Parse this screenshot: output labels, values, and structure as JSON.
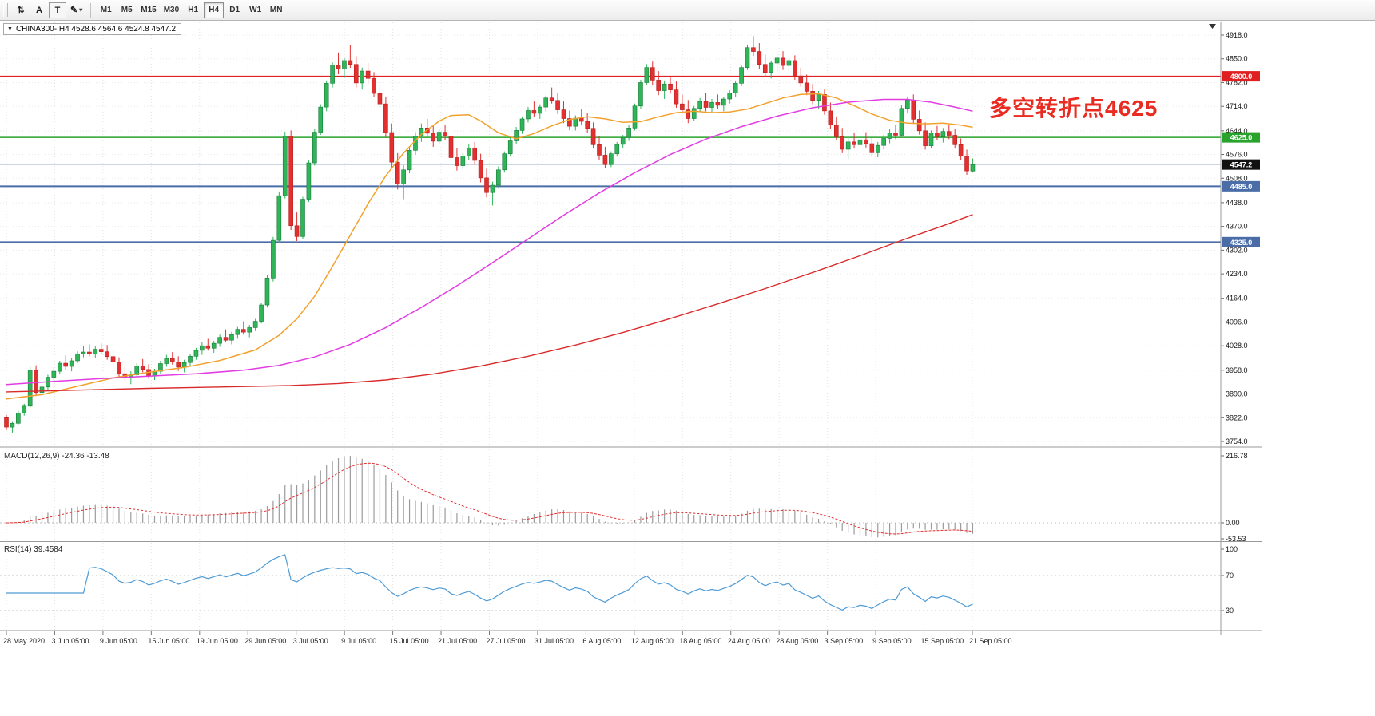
{
  "toolbar": {
    "tools": [
      {
        "name": "chart-shift",
        "label": "⇅"
      },
      {
        "name": "text-annotation",
        "label": "A"
      },
      {
        "name": "text-label",
        "label": "T"
      },
      {
        "name": "draw-tool",
        "label": "✎"
      }
    ],
    "timeframes": [
      "M1",
      "M5",
      "M15",
      "M30",
      "H1",
      "H4",
      "D1",
      "W1",
      "MN"
    ],
    "active_timeframe": "H4"
  },
  "chart": {
    "title": "CHINA300-,H4 4528.6 4564.6 4524.8 4547.2",
    "symbol": "CHINA300-",
    "period": "H4",
    "ohlc": {
      "open": 4528.6,
      "high": 4564.6,
      "low": 4524.8,
      "close": 4547.2
    },
    "annotation": {
      "text": "多空转折点4625",
      "color": "#ea2b22"
    },
    "colors": {
      "up": "#2fb558",
      "up_stroke": "#157a38",
      "down": "#e22f2f",
      "down_stroke": "#b81d1d",
      "ma_fast": "#f2a12c",
      "ma_mid": "#e23ce2",
      "ma_slow": "#d92b2b",
      "grid": "#e2e2e2",
      "current_line": "#a9bed2"
    },
    "price_axis": [
      "4918.0",
      "4850.0",
      "4782.0",
      "4714.0",
      "4644.0",
      "4576.0",
      "4508.0",
      "4438.0",
      "4370.0",
      "4302.0",
      "4234.0",
      "4164.0",
      "4096.0",
      "4028.0",
      "3958.0",
      "3890.0",
      "3822.0",
      "3754.0"
    ],
    "hlines": [
      {
        "value": 4800.0,
        "label": "4800.0",
        "color": "#e02020",
        "width": 1.4
      },
      {
        "value": 4625.0,
        "label": "4625.0",
        "color": "#28a32b",
        "width": 1.6
      },
      {
        "value": 4485.0,
        "label": "4485.0",
        "color": "#4a6da8",
        "width": 2
      },
      {
        "value": 4325.0,
        "label": "4325.0",
        "color": "#4a6da8",
        "width": 2
      }
    ],
    "current_price": {
      "value": 4547.2,
      "label": "4547.2",
      "badge_color": "#111111"
    },
    "candles": [
      [
        3822,
        3830,
        3786,
        3795
      ],
      [
        3795,
        3810,
        3778,
        3806
      ],
      [
        3806,
        3842,
        3800,
        3835
      ],
      [
        3835,
        3862,
        3828,
        3855
      ],
      [
        3855,
        3968,
        3850,
        3958
      ],
      [
        3958,
        3972,
        3884,
        3894
      ],
      [
        3894,
        3918,
        3880,
        3910
      ],
      [
        3910,
        3945,
        3902,
        3938
      ],
      [
        3938,
        3965,
        3925,
        3955
      ],
      [
        3955,
        3985,
        3948,
        3978
      ],
      [
        3978,
        4000,
        3960,
        3969
      ],
      [
        3969,
        3992,
        3955,
        3985
      ],
      [
        3985,
        4012,
        3978,
        4005
      ],
      [
        4005,
        4028,
        3995,
        4010
      ],
      [
        4010,
        4032,
        3998,
        4004
      ],
      [
        4004,
        4026,
        3992,
        4018
      ],
      [
        4018,
        4035,
        4005,
        4011
      ],
      [
        4011,
        4030,
        3988,
        3997
      ],
      [
        3997,
        4015,
        3972,
        3981
      ],
      [
        3981,
        3995,
        3940,
        3948
      ],
      [
        3948,
        3968,
        3928,
        3936
      ],
      [
        3936,
        3955,
        3918,
        3945
      ],
      [
        3945,
        3978,
        3938,
        3970
      ],
      [
        3970,
        3990,
        3952,
        3960
      ],
      [
        3960,
        3975,
        3934,
        3941
      ],
      [
        3941,
        3962,
        3930,
        3955
      ],
      [
        3955,
        3985,
        3948,
        3977
      ],
      [
        3977,
        4002,
        3968,
        3992
      ],
      [
        3992,
        4010,
        3974,
        3981
      ],
      [
        3981,
        3998,
        3956,
        3967
      ],
      [
        3967,
        3988,
        3952,
        3980
      ],
      [
        3980,
        4005,
        3970,
        3998
      ],
      [
        3998,
        4022,
        3988,
        4015
      ],
      [
        4015,
        4038,
        4002,
        4028
      ],
      [
        4028,
        4048,
        4014,
        4021
      ],
      [
        4021,
        4042,
        4008,
        4035
      ],
      [
        4035,
        4060,
        4025,
        4052
      ],
      [
        4052,
        4075,
        4038,
        4044
      ],
      [
        4044,
        4068,
        4032,
        4060
      ],
      [
        4060,
        4082,
        4048,
        4075
      ],
      [
        4075,
        4098,
        4060,
        4067
      ],
      [
        4067,
        4088,
        4052,
        4080
      ],
      [
        4080,
        4105,
        4070,
        4098
      ],
      [
        4098,
        4152,
        4092,
        4145
      ],
      [
        4145,
        4230,
        4138,
        4222
      ],
      [
        4222,
        4340,
        4212,
        4330
      ],
      [
        4330,
        4470,
        4322,
        4458
      ],
      [
        4458,
        4641,
        4450,
        4628
      ],
      [
        4628,
        4645,
        4360,
        4372
      ],
      [
        4372,
        4410,
        4328,
        4341
      ],
      [
        4341,
        4455,
        4334,
        4448
      ],
      [
        4448,
        4560,
        4440,
        4552
      ],
      [
        4552,
        4650,
        4544,
        4640
      ],
      [
        4640,
        4720,
        4632,
        4712
      ],
      [
        4712,
        4788,
        4700,
        4780
      ],
      [
        4780,
        4840,
        4768,
        4832
      ],
      [
        4832,
        4868,
        4806,
        4821
      ],
      [
        4821,
        4852,
        4795,
        4845
      ],
      [
        4845,
        4890,
        4824,
        4834
      ],
      [
        4834,
        4858,
        4768,
        4781
      ],
      [
        4781,
        4825,
        4762,
        4815
      ],
      [
        4815,
        4838,
        4778,
        4794
      ],
      [
        4794,
        4812,
        4740,
        4751
      ],
      [
        4751,
        4785,
        4710,
        4721
      ],
      [
        4721,
        4742,
        4626,
        4639
      ],
      [
        4639,
        4665,
        4538,
        4554
      ],
      [
        4554,
        4580,
        4476,
        4491
      ],
      [
        4491,
        4545,
        4448,
        4532
      ],
      [
        4532,
        4598,
        4522,
        4588
      ],
      [
        4588,
        4640,
        4575,
        4628
      ],
      [
        4628,
        4665,
        4612,
        4652
      ],
      [
        4652,
        4678,
        4626,
        4637
      ],
      [
        4637,
        4660,
        4598,
        4614
      ],
      [
        4614,
        4648,
        4605,
        4640
      ],
      [
        4640,
        4662,
        4616,
        4629
      ],
      [
        4629,
        4645,
        4553,
        4567
      ],
      [
        4567,
        4595,
        4530,
        4544
      ],
      [
        4544,
        4580,
        4535,
        4572
      ],
      [
        4572,
        4605,
        4560,
        4595
      ],
      [
        4595,
        4612,
        4546,
        4559
      ],
      [
        4559,
        4578,
        4496,
        4509
      ],
      [
        4509,
        4535,
        4453,
        4467
      ],
      [
        4467,
        4498,
        4430,
        4488
      ],
      [
        4488,
        4542,
        4480,
        4532
      ],
      [
        4532,
        4585,
        4524,
        4578
      ],
      [
        4578,
        4625,
        4570,
        4615
      ],
      [
        4615,
        4655,
        4605,
        4645
      ],
      [
        4645,
        4685,
        4635,
        4678
      ],
      [
        4678,
        4712,
        4668,
        4702
      ],
      [
        4702,
        4728,
        4684,
        4694
      ],
      [
        4694,
        4720,
        4678,
        4712
      ],
      [
        4712,
        4745,
        4700,
        4738
      ],
      [
        4738,
        4768,
        4722,
        4731
      ],
      [
        4731,
        4752,
        4692,
        4704
      ],
      [
        4704,
        4728,
        4666,
        4679
      ],
      [
        4679,
        4702,
        4646,
        4657
      ],
      [
        4657,
        4688,
        4645,
        4680
      ],
      [
        4680,
        4705,
        4660,
        4671
      ],
      [
        4671,
        4695,
        4638,
        4651
      ],
      [
        4651,
        4668,
        4593,
        4604
      ],
      [
        4604,
        4628,
        4560,
        4574
      ],
      [
        4574,
        4598,
        4536,
        4547
      ],
      [
        4547,
        4585,
        4540,
        4578
      ],
      [
        4578,
        4612,
        4570,
        4605
      ],
      [
        4605,
        4632,
        4595,
        4625
      ],
      [
        4625,
        4660,
        4615,
        4652
      ],
      [
        4652,
        4722,
        4645,
        4715
      ],
      [
        4715,
        4790,
        4708,
        4782
      ],
      [
        4782,
        4835,
        4774,
        4825
      ],
      [
        4825,
        4842,
        4776,
        4789
      ],
      [
        4789,
        4815,
        4746,
        4759
      ],
      [
        4759,
        4788,
        4735,
        4778
      ],
      [
        4778,
        4800,
        4750,
        4761
      ],
      [
        4761,
        4785,
        4710,
        4721
      ],
      [
        4721,
        4748,
        4693,
        4704
      ],
      [
        4704,
        4732,
        4666,
        4679
      ],
      [
        4679,
        4715,
        4672,
        4708
      ],
      [
        4708,
        4738,
        4698,
        4728
      ],
      [
        4728,
        4752,
        4700,
        4711
      ],
      [
        4711,
        4735,
        4694,
        4725
      ],
      [
        4725,
        4748,
        4706,
        4717
      ],
      [
        4717,
        4742,
        4700,
        4735
      ],
      [
        4735,
        4760,
        4722,
        4752
      ],
      [
        4752,
        4788,
        4742,
        4780
      ],
      [
        4780,
        4832,
        4772,
        4825
      ],
      [
        4825,
        4890,
        4818,
        4882
      ],
      [
        4882,
        4915,
        4858,
        4871
      ],
      [
        4871,
        4895,
        4820,
        4834
      ],
      [
        4834,
        4862,
        4798,
        4811
      ],
      [
        4811,
        4845,
        4794,
        4838
      ],
      [
        4838,
        4865,
        4814,
        4852
      ],
      [
        4852,
        4872,
        4818,
        4831
      ],
      [
        4831,
        4858,
        4806,
        4845
      ],
      [
        4845,
        4860,
        4790,
        4801
      ],
      [
        4801,
        4825,
        4770,
        4781
      ],
      [
        4781,
        4805,
        4746,
        4757
      ],
      [
        4757,
        4778,
        4720,
        4731
      ],
      [
        4731,
        4758,
        4706,
        4748
      ],
      [
        4748,
        4762,
        4690,
        4701
      ],
      [
        4701,
        4725,
        4650,
        4661
      ],
      [
        4661,
        4685,
        4616,
        4627
      ],
      [
        4627,
        4652,
        4580,
        4591
      ],
      [
        4591,
        4625,
        4563,
        4612
      ],
      [
        4612,
        4638,
        4593,
        4604
      ],
      [
        4604,
        4628,
        4576,
        4618
      ],
      [
        4618,
        4640,
        4596,
        4607
      ],
      [
        4607,
        4625,
        4570,
        4581
      ],
      [
        4581,
        4612,
        4568,
        4602
      ],
      [
        4602,
        4632,
        4590,
        4622
      ],
      [
        4622,
        4648,
        4608,
        4638
      ],
      [
        4638,
        4662,
        4620,
        4631
      ],
      [
        4631,
        4718,
        4624,
        4708
      ],
      [
        4708,
        4742,
        4694,
        4732
      ],
      [
        4732,
        4748,
        4666,
        4677
      ],
      [
        4677,
        4702,
        4633,
        4644
      ],
      [
        4644,
        4668,
        4590,
        4601
      ],
      [
        4601,
        4645,
        4593,
        4638
      ],
      [
        4638,
        4658,
        4616,
        4627
      ],
      [
        4627,
        4652,
        4610,
        4642
      ],
      [
        4642,
        4660,
        4620,
        4631
      ],
      [
        4631,
        4648,
        4593,
        4604
      ],
      [
        4604,
        4622,
        4560,
        4571
      ],
      [
        4571,
        4590,
        4518,
        4529
      ],
      [
        4528.6,
        4564.6,
        4524.8,
        4547.2
      ]
    ],
    "ma_fast_points": [
      [
        0,
        3876
      ],
      [
        6,
        3888
      ],
      [
        12,
        3912
      ],
      [
        18,
        3936
      ],
      [
        24,
        3952
      ],
      [
        30,
        3966
      ],
      [
        36,
        3986
      ],
      [
        42,
        4016
      ],
      [
        46,
        4058
      ],
      [
        49,
        4105
      ],
      [
        52,
        4170
      ],
      [
        55,
        4255
      ],
      [
        58,
        4345
      ],
      [
        61,
        4435
      ],
      [
        64,
        4515
      ],
      [
        67,
        4580
      ],
      [
        70,
        4634
      ],
      [
        73,
        4672
      ],
      [
        75,
        4688
      ],
      [
        78,
        4690
      ],
      [
        80,
        4672
      ],
      [
        83,
        4638
      ],
      [
        86,
        4621
      ],
      [
        89,
        4636
      ],
      [
        92,
        4658
      ],
      [
        95,
        4676
      ],
      [
        98,
        4684
      ],
      [
        101,
        4678
      ],
      [
        104,
        4668
      ],
      [
        107,
        4670
      ],
      [
        110,
        4684
      ],
      [
        113,
        4696
      ],
      [
        116,
        4700
      ],
      [
        119,
        4696
      ],
      [
        122,
        4698
      ],
      [
        125,
        4706
      ],
      [
        128,
        4722
      ],
      [
        131,
        4738
      ],
      [
        134,
        4748
      ],
      [
        137,
        4750
      ],
      [
        140,
        4738
      ],
      [
        143,
        4716
      ],
      [
        146,
        4692
      ],
      [
        149,
        4674
      ],
      [
        152,
        4666
      ],
      [
        155,
        4664
      ],
      [
        158,
        4666
      ],
      [
        161,
        4660
      ],
      [
        163,
        4654
      ]
    ],
    "ma_mid_points": [
      [
        0,
        3917
      ],
      [
        8,
        3926
      ],
      [
        16,
        3934
      ],
      [
        24,
        3941
      ],
      [
        32,
        3948
      ],
      [
        40,
        3958
      ],
      [
        46,
        3972
      ],
      [
        52,
        3996
      ],
      [
        58,
        4032
      ],
      [
        64,
        4080
      ],
      [
        70,
        4138
      ],
      [
        76,
        4200
      ],
      [
        82,
        4266
      ],
      [
        88,
        4334
      ],
      [
        94,
        4402
      ],
      [
        100,
        4466
      ],
      [
        106,
        4524
      ],
      [
        112,
        4576
      ],
      [
        118,
        4620
      ],
      [
        124,
        4656
      ],
      [
        130,
        4686
      ],
      [
        136,
        4710
      ],
      [
        142,
        4726
      ],
      [
        148,
        4734
      ],
      [
        152,
        4734
      ],
      [
        156,
        4726
      ],
      [
        160,
        4712
      ],
      [
        163,
        4700
      ]
    ],
    "ma_slow_points": [
      [
        0,
        3896
      ],
      [
        12,
        3901
      ],
      [
        24,
        3906
      ],
      [
        36,
        3910
      ],
      [
        48,
        3914
      ],
      [
        56,
        3920
      ],
      [
        64,
        3930
      ],
      [
        72,
        3947
      ],
      [
        80,
        3970
      ],
      [
        88,
        3998
      ],
      [
        96,
        4030
      ],
      [
        104,
        4066
      ],
      [
        112,
        4106
      ],
      [
        120,
        4148
      ],
      [
        128,
        4192
      ],
      [
        136,
        4238
      ],
      [
        144,
        4286
      ],
      [
        152,
        4336
      ],
      [
        158,
        4372
      ],
      [
        163,
        4404
      ]
    ]
  },
  "macd": {
    "label": "MACD(12,26,9) -24.36 -13.48",
    "params": "12,26,9",
    "main_value": -24.36,
    "signal_value": -13.48,
    "axis": [
      "216.78",
      "0.00",
      "-53.53"
    ]
  },
  "rsi": {
    "label": "RSI(14) 39.4584",
    "period": 14,
    "value": 39.4584,
    "axis": [
      "100",
      "70",
      "30"
    ]
  },
  "time_axis": [
    "28 May 2020",
    "3 Jun 05:00",
    "9 Jun 05:00",
    "15 Jun 05:00",
    "19 Jun 05:00",
    "29 Jun 05:00",
    "3 Jul 05:00",
    "9 Jul 05:00",
    "15 Jul 05:00",
    "21 Jul 05:00",
    "27 Jul 05:00",
    "31 Jul 05:00",
    "6 Aug 05:00",
    "12 Aug 05:00",
    "18 Aug 05:00",
    "24 Aug 05:00",
    "28 Aug 05:00",
    "3 Sep 05:00",
    "9 Sep 05:00",
    "15 Sep 05:00",
    "21 Sep 05:00"
  ]
}
